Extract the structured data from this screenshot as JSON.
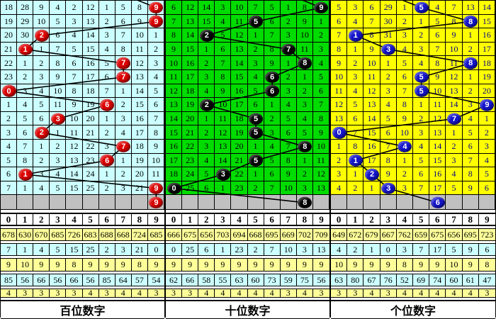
{
  "colors": {
    "grid_line": "#000000",
    "trend_line": "#000000",
    "gray_row": "#C0C0C0",
    "stats_row_yellow": "#FFFF99",
    "stats_row_cyan": "#CCFFFF",
    "ball_text": "#FFFFFF"
  },
  "chart_data": [
    {
      "type": "table",
      "footer": "百位数字",
      "panel_bg": "#CCFFFF",
      "digit_color": "#000000",
      "ball_color": "#DD0000",
      "columns": [
        "0",
        "1",
        "2",
        "3",
        "4",
        "5",
        "6",
        "7",
        "8",
        "9"
      ],
      "miss_rows": [
        [
          18,
          28,
          9,
          4,
          2,
          12,
          1,
          5,
          8,
          ""
        ],
        [
          19,
          29,
          10,
          5,
          3,
          13,
          2,
          6,
          9,
          ""
        ],
        [
          20,
          30,
          "",
          6,
          4,
          14,
          3,
          7,
          10,
          1
        ],
        [
          21,
          "",
          1,
          7,
          5,
          15,
          4,
          8,
          11,
          2
        ],
        [
          22,
          1,
          2,
          8,
          6,
          16,
          5,
          "",
          12,
          3
        ],
        [
          23,
          2,
          3,
          9,
          7,
          17,
          6,
          "",
          13,
          4
        ],
        [
          "",
          3,
          4,
          10,
          8,
          18,
          7,
          1,
          14,
          5
        ],
        [
          1,
          4,
          5,
          11,
          9,
          19,
          "",
          2,
          15,
          6
        ],
        [
          2,
          5,
          6,
          "",
          10,
          20,
          1,
          3,
          16,
          7
        ],
        [
          3,
          6,
          "",
          1,
          11,
          21,
          2,
          4,
          17,
          8
        ],
        [
          4,
          7,
          1,
          2,
          12,
          22,
          3,
          "",
          18,
          9
        ],
        [
          5,
          8,
          2,
          3,
          13,
          23,
          "",
          1,
          19,
          10
        ],
        [
          6,
          "",
          3,
          4,
          14,
          24,
          1,
          2,
          20,
          11
        ],
        [
          7,
          1,
          4,
          5,
          15,
          25,
          2,
          3,
          21,
          ""
        ]
      ],
      "balls": [
        {
          "row": 0,
          "col": 9,
          "label": "9"
        },
        {
          "row": 1,
          "col": 9,
          "label": "9"
        },
        {
          "row": 2,
          "col": 2,
          "label": "2"
        },
        {
          "row": 3,
          "col": 1,
          "label": "1"
        },
        {
          "row": 4,
          "col": 7,
          "label": "7"
        },
        {
          "row": 5,
          "col": 7,
          "label": "7"
        },
        {
          "row": 6,
          "col": 0,
          "label": "0"
        },
        {
          "row": 7,
          "col": 6,
          "label": "6"
        },
        {
          "row": 8,
          "col": 3,
          "label": "3"
        },
        {
          "row": 9,
          "col": 2,
          "label": "2"
        },
        {
          "row": 10,
          "col": 7,
          "label": "7"
        },
        {
          "row": 11,
          "col": 6,
          "label": "6"
        },
        {
          "row": 12,
          "col": 1,
          "label": "1"
        },
        {
          "row": 13,
          "col": 9,
          "label": "9"
        },
        {
          "row": 14,
          "col": 9,
          "label": "9"
        }
      ],
      "stats_rows": [
        [
          678,
          630,
          670,
          685,
          726,
          683,
          688,
          668,
          724,
          685
        ],
        [
          7,
          1,
          4,
          5,
          15,
          25,
          2,
          3,
          21,
          0
        ],
        [
          9,
          10,
          9,
          9,
          8,
          9,
          9,
          9,
          8,
          9
        ],
        [
          85,
          56,
          66,
          56,
          66,
          56,
          85,
          64,
          57,
          54
        ],
        [
          4,
          3,
          3,
          3,
          3,
          4,
          3,
          4,
          4,
          3
        ]
      ]
    },
    {
      "type": "table",
      "footer": "十位数字",
      "panel_bg": "#00DC00",
      "digit_color": "#000000",
      "ball_color": "#000000",
      "columns": [
        "0",
        "1",
        "2",
        "3",
        "4",
        "5",
        "6",
        "7",
        "8",
        "9"
      ],
      "miss_rows": [
        [
          6,
          12,
          14,
          3,
          10,
          7,
          5,
          1,
          8,
          ""
        ],
        [
          7,
          13,
          15,
          4,
          11,
          "",
          6,
          2,
          9,
          1
        ],
        [
          8,
          14,
          "",
          5,
          12,
          1,
          7,
          3,
          10,
          2
        ],
        [
          9,
          15,
          1,
          6,
          13,
          2,
          8,
          "",
          11,
          3
        ],
        [
          10,
          16,
          2,
          7,
          14,
          3,
          9,
          1,
          "",
          4
        ],
        [
          11,
          17,
          3,
          8,
          15,
          4,
          "",
          2,
          1,
          5
        ],
        [
          12,
          18,
          4,
          9,
          16,
          5,
          "",
          3,
          2,
          6
        ],
        [
          13,
          19,
          "",
          10,
          17,
          6,
          1,
          4,
          3,
          7
        ],
        [
          14,
          20,
          1,
          11,
          18,
          "",
          2,
          5,
          4,
          8
        ],
        [
          15,
          21,
          2,
          12,
          19,
          "",
          3,
          6,
          5,
          9
        ],
        [
          16,
          22,
          3,
          13,
          20,
          1,
          4,
          7,
          "",
          10
        ],
        [
          17,
          23,
          4,
          14,
          21,
          "",
          5,
          8,
          1,
          11
        ],
        [
          18,
          24,
          5,
          "",
          22,
          1,
          6,
          9,
          2,
          12
        ],
        [
          "",
          25,
          6,
          1,
          23,
          2,
          7,
          10,
          3,
          13
        ]
      ],
      "balls": [
        {
          "row": 0,
          "col": 9,
          "label": "9"
        },
        {
          "row": 1,
          "col": 5,
          "label": "5"
        },
        {
          "row": 2,
          "col": 2,
          "label": "2"
        },
        {
          "row": 3,
          "col": 7,
          "label": "7"
        },
        {
          "row": 4,
          "col": 8,
          "label": "8"
        },
        {
          "row": 5,
          "col": 6,
          "label": "6"
        },
        {
          "row": 6,
          "col": 6,
          "label": "6"
        },
        {
          "row": 7,
          "col": 2,
          "label": "2"
        },
        {
          "row": 8,
          "col": 5,
          "label": "5"
        },
        {
          "row": 9,
          "col": 5,
          "label": "5"
        },
        {
          "row": 10,
          "col": 8,
          "label": "8"
        },
        {
          "row": 11,
          "col": 5,
          "label": "5"
        },
        {
          "row": 12,
          "col": 3,
          "label": "3"
        },
        {
          "row": 13,
          "col": 0,
          "label": "0"
        },
        {
          "row": 14,
          "col": 8,
          "label": "8"
        }
      ],
      "stats_rows": [
        [
          666,
          675,
          656,
          703,
          694,
          668,
          695,
          669,
          702,
          709
        ],
        [
          0,
          25,
          6,
          1,
          23,
          2,
          7,
          10,
          3,
          13
        ],
        [
          9,
          9,
          9,
          9,
          9,
          9,
          9,
          9,
          9,
          9
        ],
        [
          62,
          66,
          58,
          55,
          63,
          60,
          73,
          59,
          75,
          56
        ],
        [
          3,
          3,
          4,
          4,
          4,
          4,
          4,
          3,
          4,
          3
        ]
      ]
    },
    {
      "type": "table",
      "footer": "个位数字",
      "panel_bg": "#FFFF00",
      "digit_color": "#00008B",
      "ball_color": "#1414CC",
      "columns": [
        "0",
        "1",
        "2",
        "3",
        "4",
        "5",
        "6",
        "7",
        "8",
        "9"
      ],
      "miss_rows": [
        [
          5,
          3,
          6,
          29,
          1,
          "",
          4,
          7,
          13,
          14
        ],
        [
          6,
          4,
          7,
          30,
          2,
          1,
          5,
          8,
          "",
          15
        ],
        [
          7,
          "",
          8,
          31,
          3,
          2,
          6,
          9,
          1,
          16
        ],
        [
          8,
          1,
          9,
          "",
          4,
          3,
          7,
          10,
          2,
          17
        ],
        [
          9,
          2,
          10,
          1,
          5,
          4,
          8,
          11,
          "",
          18
        ],
        [
          10,
          3,
          11,
          2,
          6,
          "",
          9,
          12,
          1,
          19
        ],
        [
          11,
          4,
          12,
          3,
          7,
          "",
          10,
          13,
          2,
          20
        ],
        [
          12,
          5,
          13,
          4,
          8,
          1,
          11,
          14,
          3,
          ""
        ],
        [
          13,
          6,
          14,
          5,
          9,
          2,
          12,
          "",
          4,
          1
        ],
        [
          "",
          7,
          15,
          6,
          10,
          3,
          13,
          1,
          5,
          2
        ],
        [
          1,
          8,
          16,
          7,
          "",
          4,
          14,
          2,
          6,
          3
        ],
        [
          2,
          "",
          17,
          8,
          1,
          5,
          15,
          3,
          7,
          4
        ],
        [
          3,
          1,
          "",
          9,
          2,
          6,
          16,
          4,
          8,
          5
        ],
        [
          4,
          2,
          1,
          "",
          3,
          7,
          17,
          5,
          9,
          6
        ]
      ],
      "balls": [
        {
          "row": 0,
          "col": 5,
          "label": "5"
        },
        {
          "row": 1,
          "col": 8,
          "label": "8"
        },
        {
          "row": 2,
          "col": 1,
          "label": "1"
        },
        {
          "row": 3,
          "col": 3,
          "label": "3"
        },
        {
          "row": 4,
          "col": 8,
          "label": "8"
        },
        {
          "row": 5,
          "col": 5,
          "label": "5"
        },
        {
          "row": 6,
          "col": 5,
          "label": "5"
        },
        {
          "row": 7,
          "col": 9,
          "label": "9"
        },
        {
          "row": 8,
          "col": 7,
          "label": "7"
        },
        {
          "row": 9,
          "col": 0,
          "label": "0"
        },
        {
          "row": 10,
          "col": 4,
          "label": "4"
        },
        {
          "row": 11,
          "col": 1,
          "label": "1"
        },
        {
          "row": 12,
          "col": 2,
          "label": "2"
        },
        {
          "row": 13,
          "col": 3,
          "label": "3"
        },
        {
          "row": 14,
          "col": 6,
          "label": "6"
        }
      ],
      "stats_rows": [
        [
          649,
          672,
          679,
          667,
          762,
          659,
          675,
          656,
          695,
          723
        ],
        [
          4,
          2,
          1,
          0,
          3,
          7,
          17,
          5,
          9,
          6
        ],
        [
          10,
          9,
          9,
          9,
          8,
          9,
          9,
          10,
          9,
          8
        ],
        [
          63,
          80,
          67,
          76,
          52,
          69,
          74,
          60,
          61,
          47
        ],
        [
          3,
          3,
          4,
          3,
          4,
          4,
          4,
          4,
          4,
          3
        ]
      ]
    }
  ]
}
